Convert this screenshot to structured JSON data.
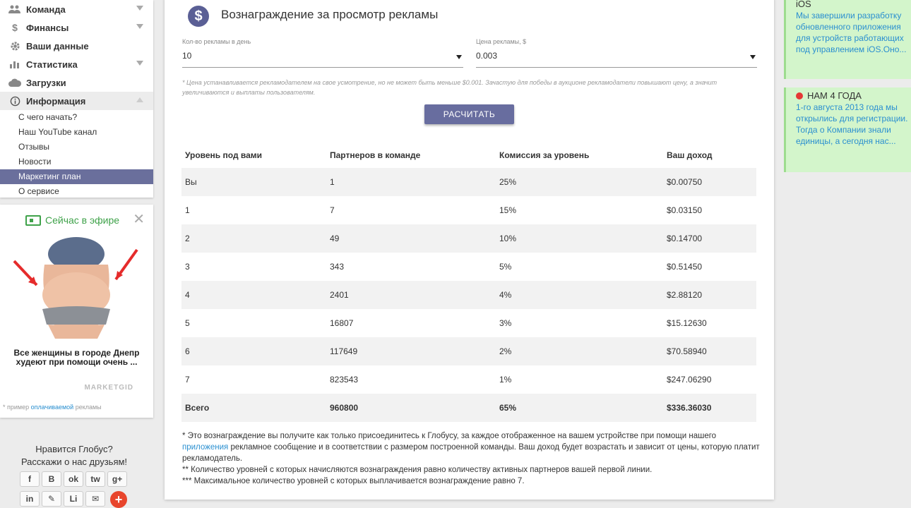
{
  "sidebar": {
    "menu": [
      {
        "label": "Команда",
        "icon": "users-icon",
        "chevron": "down"
      },
      {
        "label": "Финансы",
        "icon": "dollar-icon",
        "chevron": "down"
      },
      {
        "label": "Ваши данные",
        "icon": "gear-icon",
        "chevron": ""
      },
      {
        "label": "Статистика",
        "icon": "chart-icon",
        "chevron": "down"
      },
      {
        "label": "Загрузки",
        "icon": "cloud-icon",
        "chevron": ""
      },
      {
        "label": "Информация",
        "icon": "info-icon",
        "chevron": "up"
      }
    ],
    "submenu": [
      {
        "label": "С чего начать?",
        "active": false
      },
      {
        "label": "Наш YouTube канал",
        "active": false
      },
      {
        "label": "Отзывы",
        "active": false
      },
      {
        "label": "Новости",
        "active": false
      },
      {
        "label": "Маркетинг план",
        "active": true
      },
      {
        "label": "О сервисе",
        "active": false
      }
    ]
  },
  "ad": {
    "live_label": "Сейчас в эфире",
    "title": "Все женщины в городе Днепр худеют при помощи очень ...",
    "brand": "MARKETGID",
    "note_prefix": "* пример ",
    "note_link": "оплачиваемой",
    "note_suffix": " рекламы"
  },
  "share": {
    "line1": "Нравится Глобус?",
    "line2": "Расскажи о нас друзьям!",
    "row1": [
      "f",
      "B",
      "ok",
      "tw",
      "g+"
    ],
    "row2": [
      "in",
      "✎",
      "Li",
      "✉",
      "+"
    ]
  },
  "main": {
    "icon_glyph": "$",
    "title": "Вознаграждение за просмотр рекламы",
    "ads_per_day": {
      "label": "Кол-во рекламы в день",
      "value": "10"
    },
    "ad_price": {
      "label": "Цена рекламы, $",
      "value": "0.003"
    },
    "price_note": "* Цена устанавливается рекламодателем на свое усмотрение, но не может быть меньше $0.001. Зачастую для победы в аукционе рекламодатели повышают цену, а значит увеличиваются и выплаты пользователям.",
    "calc_button": "РАСЧИТАТЬ",
    "table": {
      "headers": [
        "Уровень под вами",
        "Партнеров в команде",
        "Комиссия за уровень",
        "Ваш доход"
      ],
      "rows": [
        [
          "Вы",
          "1",
          "25%",
          "$0.00750"
        ],
        [
          "1",
          "7",
          "15%",
          "$0.03150"
        ],
        [
          "2",
          "49",
          "10%",
          "$0.14700"
        ],
        [
          "3",
          "343",
          "5%",
          "$0.51450"
        ],
        [
          "4",
          "2401",
          "4%",
          "$2.88120"
        ],
        [
          "5",
          "16807",
          "3%",
          "$15.12630"
        ],
        [
          "6",
          "117649",
          "2%",
          "$70.58940"
        ],
        [
          "7",
          "823543",
          "1%",
          "$247.06290"
        ]
      ],
      "total": [
        "Всего",
        "960800",
        "65%",
        "$336.36030"
      ]
    },
    "footnotes": {
      "f1_a": "* Это вознаграждение вы получите как только присоединитесь к Глобусу, за каждое отображенное на вашем устройстве при помощи нашего ",
      "f1_link": "приложения",
      "f1_b": " рекламное сообщение и в соответствии с размером построенной команды. Ваш доход будет возрастать и зависит от цены, которую платит рекламодатель.",
      "f2": "** Количество уровней с которых начисляются вознаграждения равно количеству активных партнеров вашей первой линии.",
      "f3": "*** Максимальное количество уровней с которых выплачивается вознаграждение равно 7."
    }
  },
  "news": [
    {
      "title": "iOS",
      "text": "Мы завершили разработку обновленного приложения для устройств работающих под управлением iOS.Оно..."
    },
    {
      "title": "НАМ 4 ГОДА",
      "text": "1-го августа 2013 года мы открылись для регистрации. Тогда о Компании знали единицы, а сегодня нас..."
    }
  ]
}
